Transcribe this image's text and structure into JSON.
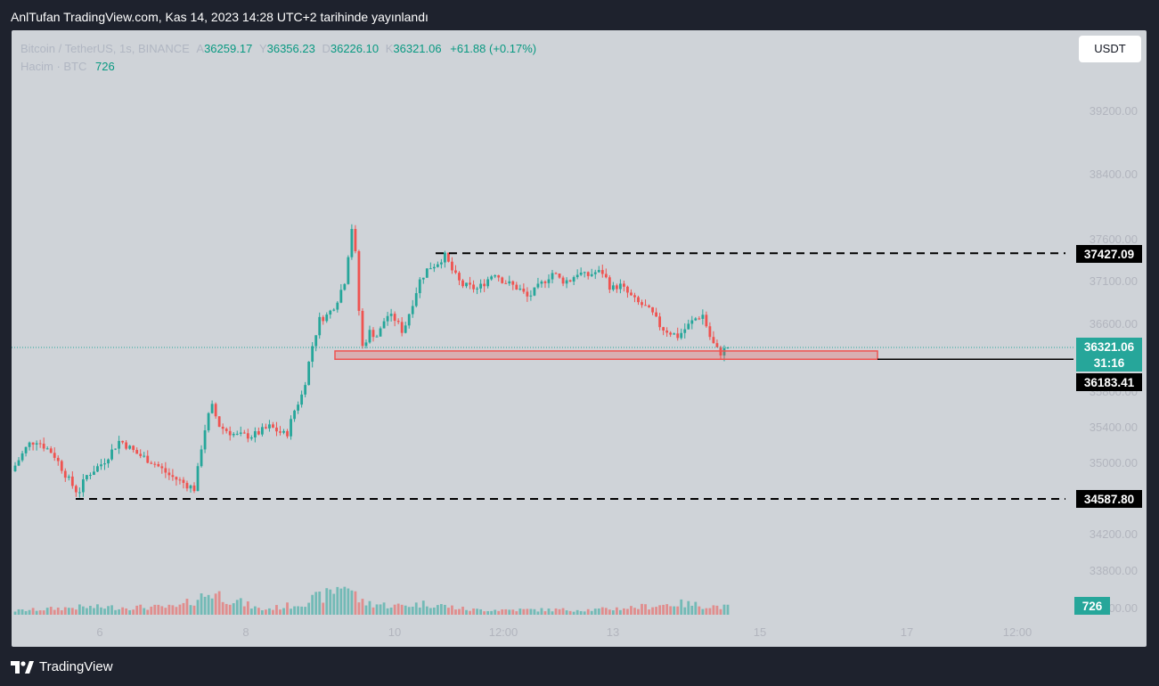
{
  "header": {
    "publisher_text": "AnlTufan TradingView.com, Kas 14, 2023 14:28 UTC+2 tarihinde yayınlandı"
  },
  "legend": {
    "symbol": "Bitcoin / TetherUS, 1s, BINANCE",
    "o_label": "A",
    "o_value": "36259.17",
    "h_label": "Y",
    "h_value": "36356.23",
    "l_label": "D",
    "l_value": "36226.10",
    "c_label": "K",
    "c_value": "36321.06",
    "change": "+61.88 (+0.17%)",
    "volume_label": "Hacim · BTC",
    "volume_value": "726"
  },
  "toolbar": {
    "currency_label": "USDT"
  },
  "footer": {
    "brand": "TradingView"
  },
  "colors": {
    "up": "#26a69a",
    "down": "#ef5350",
    "background": "#cfd3d8",
    "frame": "#1e222d"
  },
  "chart_data": {
    "type": "candlestick",
    "interval": "1 hour",
    "y_ticks": [
      "39200.00",
      "38400.00",
      "37600.00",
      "37100.00",
      "36600.00",
      "35800.00",
      "35400.00",
      "35000.00",
      "34200.00",
      "33800.00",
      "33400.00"
    ],
    "x_ticks": [
      "6",
      "8",
      "10",
      "12:00",
      "13",
      "15",
      "17",
      "12:00"
    ],
    "price_labels": {
      "resistance": "37427.09",
      "current": "36321.06",
      "countdown": "31:16",
      "support_zone": "36183.41",
      "support": "34587.80",
      "volume": "726"
    },
    "levels": {
      "resistance": 37427.09,
      "support_zone_low": 36183.41,
      "support_zone_high": 36280,
      "support": 34587.8,
      "current": 36321.06
    },
    "price_path": [
      {
        "t": 0,
        "p": 34900
      },
      {
        "t": 2,
        "p": 35200
      },
      {
        "t": 3,
        "p": 35250
      },
      {
        "t": 5,
        "p": 35100
      },
      {
        "t": 7,
        "p": 34780
      },
      {
        "t": 8,
        "p": 34650
      },
      {
        "t": 9,
        "p": 34850
      },
      {
        "t": 11,
        "p": 35000
      },
      {
        "t": 13,
        "p": 35250
      },
      {
        "t": 15,
        "p": 35100
      },
      {
        "t": 17,
        "p": 35000
      },
      {
        "t": 19,
        "p": 34850
      },
      {
        "t": 21,
        "p": 34750
      },
      {
        "t": 22,
        "p": 34700
      },
      {
        "t": 23,
        "p": 35300
      },
      {
        "t": 24,
        "p": 35650
      },
      {
        "t": 25,
        "p": 35400
      },
      {
        "t": 27,
        "p": 35300
      },
      {
        "t": 29,
        "p": 35300
      },
      {
        "t": 31,
        "p": 35400
      },
      {
        "t": 33,
        "p": 35300
      },
      {
        "t": 34,
        "p": 35600
      },
      {
        "t": 35,
        "p": 35800
      },
      {
        "t": 36,
        "p": 36300
      },
      {
        "t": 37,
        "p": 36650
      },
      {
        "t": 38,
        "p": 36700
      },
      {
        "t": 39,
        "p": 36850
      },
      {
        "t": 40,
        "p": 37100
      },
      {
        "t": 41,
        "p": 37850
      },
      {
        "t": 42,
        "p": 36300
      },
      {
        "t": 43,
        "p": 36500
      },
      {
        "t": 44,
        "p": 36450
      },
      {
        "t": 45,
        "p": 36700
      },
      {
        "t": 46,
        "p": 36650
      },
      {
        "t": 47,
        "p": 36500
      },
      {
        "t": 48,
        "p": 36800
      },
      {
        "t": 49,
        "p": 37100
      },
      {
        "t": 50,
        "p": 37250
      },
      {
        "t": 51,
        "p": 37300
      },
      {
        "t": 52,
        "p": 37400
      },
      {
        "t": 53,
        "p": 37200
      },
      {
        "t": 54,
        "p": 37050
      },
      {
        "t": 56,
        "p": 37000
      },
      {
        "t": 57,
        "p": 37100
      },
      {
        "t": 58,
        "p": 37200
      },
      {
        "t": 59,
        "p": 37100
      },
      {
        "t": 60,
        "p": 37050
      },
      {
        "t": 61,
        "p": 37000
      },
      {
        "t": 62,
        "p": 36900
      },
      {
        "t": 63,
        "p": 37000
      },
      {
        "t": 64,
        "p": 37100
      },
      {
        "t": 65,
        "p": 37200
      },
      {
        "t": 66,
        "p": 37100
      },
      {
        "t": 67,
        "p": 37100
      },
      {
        "t": 68,
        "p": 37200
      },
      {
        "t": 69,
        "p": 37150
      },
      {
        "t": 70,
        "p": 37200
      },
      {
        "t": 71,
        "p": 37200
      },
      {
        "t": 72,
        "p": 37000
      },
      {
        "t": 73,
        "p": 37050
      },
      {
        "t": 74,
        "p": 36950
      },
      {
        "t": 75,
        "p": 36850
      },
      {
        "t": 76,
        "p": 36800
      },
      {
        "t": 77,
        "p": 36700
      },
      {
        "t": 78,
        "p": 36550
      },
      {
        "t": 79,
        "p": 36500
      },
      {
        "t": 80,
        "p": 36450
      },
      {
        "t": 81,
        "p": 36550
      },
      {
        "t": 82,
        "p": 36650
      },
      {
        "t": 83,
        "p": 36700
      },
      {
        "t": 84,
        "p": 36400
      },
      {
        "t": 85,
        "p": 36250
      },
      {
        "t": 86,
        "p": 36321
      }
    ],
    "volume_path": [
      {
        "t": 0,
        "v": 0.15
      },
      {
        "t": 8,
        "v": 0.3
      },
      {
        "t": 20,
        "v": 0.3
      },
      {
        "t": 24,
        "v": 0.9
      },
      {
        "t": 30,
        "v": 0.2
      },
      {
        "t": 34,
        "v": 0.4
      },
      {
        "t": 36,
        "v": 0.6
      },
      {
        "t": 38,
        "v": 0.8
      },
      {
        "t": 40,
        "v": 1.3
      },
      {
        "t": 42,
        "v": 0.5
      },
      {
        "t": 46,
        "v": 0.35
      },
      {
        "t": 50,
        "v": 0.45
      },
      {
        "t": 55,
        "v": 0.2
      },
      {
        "t": 70,
        "v": 0.2
      },
      {
        "t": 75,
        "v": 0.3
      },
      {
        "t": 80,
        "v": 0.45
      },
      {
        "t": 86,
        "v": 0.3
      }
    ]
  }
}
